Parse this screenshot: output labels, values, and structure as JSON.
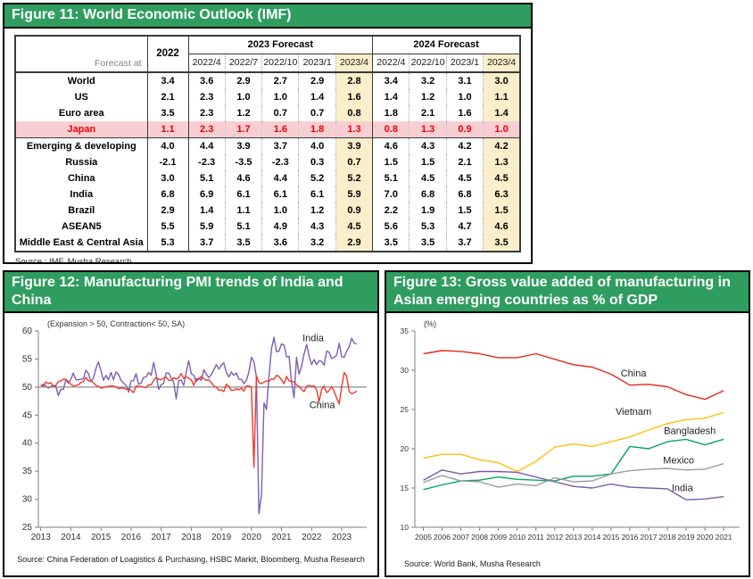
{
  "figure11": {
    "title": "Figure 11: World Economic Outlook (IMF)",
    "source": "Source : IMF, Musha Research",
    "table": {
      "corner_label": "Forecast at",
      "col_2022": "2022",
      "groups": [
        {
          "label": "2023 Forecast",
          "cols": [
            "2022/4",
            "2022/7",
            "2022/10",
            "2023/1",
            "2023/4"
          ]
        },
        {
          "label": "2024 Forecast",
          "cols": [
            "2022/4",
            "2022/10",
            "2023/1",
            "2023/4"
          ]
        }
      ],
      "rows": [
        {
          "label": "World",
          "y2022": "3.4",
          "f2023": [
            "3.6",
            "2.9",
            "2.7",
            "2.9",
            "2.8"
          ],
          "f2024": [
            "3.4",
            "3.2",
            "3.1",
            "3.0"
          ]
        },
        {
          "label": "US",
          "y2022": "2.1",
          "f2023": [
            "2.3",
            "1.0",
            "1.0",
            "1.4",
            "1.6"
          ],
          "f2024": [
            "1.4",
            "1.2",
            "1.0",
            "1.1"
          ]
        },
        {
          "label": "Euro area",
          "y2022": "3.5",
          "f2023": [
            "2.3",
            "1.2",
            "0.7",
            "0.7",
            "0.8"
          ],
          "f2024": [
            "1.8",
            "2.1",
            "1.6",
            "1.4"
          ]
        },
        {
          "label": "Japan",
          "y2022": "1.1",
          "f2023": [
            "2.3",
            "1.7",
            "1.6",
            "1.8",
            "1.3"
          ],
          "f2024": [
            "0.8",
            "1.3",
            "0.9",
            "1.0"
          ],
          "highlight": true
        },
        {
          "label": "Emerging & developing",
          "y2022": "4.0",
          "f2023": [
            "4.4",
            "3.9",
            "3.7",
            "4.0",
            "3.9"
          ],
          "f2024": [
            "4.6",
            "4.3",
            "4.2",
            "4.2"
          ],
          "separator": true
        },
        {
          "label": "Russia",
          "y2022": "-2.1",
          "f2023": [
            "-2.3",
            "-3.5",
            "-2.3",
            "0.3",
            "0.7"
          ],
          "f2024": [
            "1.5",
            "1.5",
            "2.1",
            "1.3"
          ]
        },
        {
          "label": "China",
          "y2022": "3.0",
          "f2023": [
            "5.1",
            "4.6",
            "4.4",
            "5.2",
            "5.2"
          ],
          "f2024": [
            "5.1",
            "4.5",
            "4.5",
            "4.5"
          ]
        },
        {
          "label": "India",
          "y2022": "6.8",
          "f2023": [
            "6.9",
            "6.1",
            "6.1",
            "6.1",
            "5.9"
          ],
          "f2024": [
            "7.0",
            "6.8",
            "6.8",
            "6.3"
          ]
        },
        {
          "label": "Brazil",
          "y2022": "2.9",
          "f2023": [
            "1.4",
            "1.1",
            "1.0",
            "1.2",
            "0.9"
          ],
          "f2024": [
            "2.2",
            "1.9",
            "1.5",
            "1.5"
          ]
        },
        {
          "label": "ASEAN5",
          "y2022": "5.5",
          "f2023": [
            "5.9",
            "5.1",
            "4.9",
            "4.3",
            "4.5"
          ],
          "f2024": [
            "5.6",
            "5.3",
            "4.7",
            "4.6"
          ]
        },
        {
          "label": "Middle East & Central Asia",
          "y2022": "5.3",
          "f2023": [
            "3.7",
            "3.5",
            "3.6",
            "3.2",
            "2.9"
          ],
          "f2024": [
            "3.5",
            "3.5",
            "3.7",
            "3.5"
          ]
        }
      ],
      "colors": {
        "header_green": "#2f9d60",
        "highlight_col": "#faeecb",
        "highlight_row": "#f9ced2",
        "highlight_text": "#ee0000"
      }
    }
  },
  "figure12": {
    "title": "Figure 12: Manufacturing PMI trends of India and China",
    "source": "Source: China Federation of Loagistics & Purchasing, HSBC Markit, Bloomberg, Musha Research"
  },
  "figure13": {
    "title": "Figure 13: Gross value added of manufacturing in Asian emerging countries as % of GDP",
    "source": "Source: World Bank, Musha Research"
  },
  "chart_data": [
    {
      "id": "fig12",
      "type": "line",
      "title": "Manufacturing PMI trends of India and China",
      "note": "(Expansion > 50, Contraction< 50, SA)",
      "xlim": [
        2012.92,
        2023.83
      ],
      "ylim": [
        25,
        60
      ],
      "yticks": [
        25,
        30,
        35,
        40,
        45,
        50,
        55,
        60
      ],
      "xticks": [
        2013,
        2014,
        2015,
        2016,
        2017,
        2018,
        2019,
        2020,
        2021,
        2022,
        2023
      ],
      "refline": 50,
      "x_start": 2013,
      "x_step": 0.0833333,
      "series": [
        {
          "name": "India",
          "color": "#7d5fb2",
          "values": [
            50.3,
            50.5,
            50.2,
            49.8,
            50.1,
            50.3,
            50.1,
            48.5,
            49.6,
            49.6,
            51.3,
            50.7,
            51.4,
            52.5,
            51.3,
            51.3,
            51.4,
            51.5,
            53.0,
            52.4,
            51.0,
            51.6,
            53.3,
            54.5,
            52.9,
            51.2,
            52.1,
            51.3,
            52.6,
            51.3,
            52.7,
            52.3,
            51.2,
            50.7,
            50.3,
            49.1,
            51.1,
            51.1,
            52.4,
            50.5,
            50.7,
            51.7,
            51.8,
            52.6,
            52.1,
            54.4,
            52.3,
            49.6,
            50.4,
            50.7,
            52.5,
            52.5,
            51.6,
            50.9,
            47.9,
            51.2,
            51.2,
            50.3,
            52.6,
            54.7,
            52.4,
            52.1,
            51.0,
            51.6,
            51.2,
            53.1,
            52.3,
            51.7,
            52.2,
            53.1,
            54.0,
            53.2,
            53.9,
            54.3,
            52.6,
            51.8,
            52.7,
            52.1,
            52.5,
            51.4,
            51.4,
            50.6,
            51.2,
            52.7,
            55.3,
            54.5,
            51.8,
            27.4,
            30.8,
            47.2,
            46.0,
            52.0,
            56.8,
            58.9,
            56.3,
            56.4,
            57.7,
            57.5,
            55.4,
            55.5,
            50.8,
            48.1,
            55.3,
            52.3,
            53.7,
            55.9,
            57.6,
            55.5,
            54.0,
            54.9,
            54.0,
            54.7,
            54.6,
            53.9,
            56.4,
            56.2,
            55.1,
            55.3,
            55.7,
            57.8,
            55.4,
            55.3,
            56.4,
            57.2,
            58.7,
            57.8,
            57.7
          ]
        },
        {
          "name": "China",
          "color": "#ef3a2c",
          "values": [
            50.4,
            50.1,
            50.9,
            50.6,
            50.8,
            50.1,
            50.3,
            51.0,
            51.1,
            51.4,
            51.4,
            51.0,
            50.5,
            50.2,
            50.3,
            50.4,
            50.8,
            51.0,
            51.7,
            51.1,
            51.1,
            50.8,
            50.3,
            50.1,
            49.8,
            49.9,
            50.1,
            50.1,
            50.2,
            50.2,
            50.0,
            49.7,
            49.8,
            49.8,
            49.6,
            49.7,
            49.4,
            49.0,
            50.2,
            50.1,
            50.1,
            50.0,
            49.9,
            50.4,
            50.4,
            51.2,
            51.7,
            51.4,
            51.3,
            51.6,
            51.8,
            51.2,
            51.2,
            51.7,
            51.4,
            51.7,
            52.4,
            51.6,
            51.8,
            51.6,
            51.3,
            50.3,
            51.5,
            51.4,
            51.9,
            51.5,
            51.2,
            51.3,
            50.8,
            50.2,
            50.0,
            49.4,
            49.5,
            49.2,
            50.5,
            50.1,
            49.4,
            49.4,
            49.7,
            49.5,
            49.8,
            49.3,
            50.2,
            50.2,
            50.0,
            35.7,
            52.0,
            50.8,
            50.6,
            50.9,
            51.1,
            51.0,
            51.5,
            51.4,
            52.1,
            51.9,
            51.3,
            50.6,
            51.9,
            51.1,
            51.0,
            50.9,
            50.4,
            50.1,
            49.6,
            49.2,
            50.1,
            50.3,
            50.1,
            50.2,
            49.5,
            47.4,
            49.6,
            50.2,
            49.0,
            49.4,
            50.1,
            49.2,
            48.0,
            47.0,
            50.1,
            52.6,
            51.9,
            49.2,
            48.8,
            49.0,
            49.3
          ]
        }
      ],
      "annotations": [
        {
          "text": "India",
          "x": 2022.05,
          "y": 58.2
        },
        {
          "text": "China",
          "x": 2022.35,
          "y": 46.2
        }
      ]
    },
    {
      "id": "fig13",
      "type": "line",
      "title": "Gross value added of manufacturing in Asian emerging countries as % of GDP",
      "note": "(%)",
      "xlim": [
        2004.55,
        2021.85
      ],
      "ylim": [
        10,
        35
      ],
      "yticks": [
        10,
        15,
        20,
        25,
        30,
        35
      ],
      "xticks": [
        2005,
        2006,
        2007,
        2008,
        2009,
        2010,
        2011,
        2012,
        2013,
        2014,
        2015,
        2016,
        2017,
        2018,
        2019,
        2020,
        2021
      ],
      "x_start": 2005,
      "x_step": 1,
      "series": [
        {
          "name": "China",
          "color": "#e8261d",
          "values": [
            32.1,
            32.5,
            32.4,
            32.1,
            31.6,
            31.6,
            32.1,
            31.4,
            30.7,
            30.4,
            29.5,
            28.1,
            28.2,
            27.9,
            26.9,
            26.3,
            27.4
          ]
        },
        {
          "name": "Vietnam",
          "color": "#fdc012",
          "values": [
            18.8,
            19.3,
            19.3,
            18.6,
            18.2,
            17.1,
            18.4,
            20.2,
            20.6,
            20.3,
            20.9,
            21.5,
            22.4,
            23.2,
            23.7,
            23.9,
            24.6
          ]
        },
        {
          "name": "Bangladesh",
          "color": "#00a85d",
          "values": [
            14.8,
            15.4,
            15.9,
            16.0,
            16.4,
            16.1,
            16.0,
            15.9,
            16.5,
            16.5,
            16.8,
            20.3,
            20.0,
            20.9,
            21.2,
            20.5,
            21.2
          ]
        },
        {
          "name": "Mexico",
          "color": "#9c9c9c",
          "values": [
            15.7,
            16.6,
            15.9,
            15.8,
            15.1,
            15.5,
            15.3,
            16.3,
            15.8,
            15.9,
            16.8,
            17.2,
            17.4,
            17.5,
            17.3,
            17.4,
            18.1
          ]
        },
        {
          "name": "India",
          "color": "#7e5aa6",
          "values": [
            16.0,
            17.3,
            16.8,
            17.1,
            17.1,
            17.0,
            16.4,
            15.8,
            15.2,
            15.0,
            15.5,
            15.1,
            15.0,
            14.9,
            13.5,
            13.6,
            13.9
          ]
        }
      ],
      "annotations": [
        {
          "text": "China",
          "x": 2016.2,
          "y": 29.2
        },
        {
          "text": "Vietnam",
          "x": 2016.2,
          "y": 24.3
        },
        {
          "text": "Bangladesh",
          "x": 2019.2,
          "y": 21.9
        },
        {
          "text": "Mexico",
          "x": 2018.6,
          "y": 18.1
        },
        {
          "text": "India",
          "x": 2018.8,
          "y": 14.6
        }
      ]
    }
  ]
}
